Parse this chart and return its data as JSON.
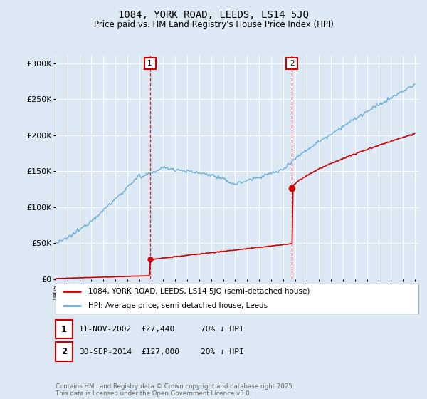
{
  "title": "1084, YORK ROAD, LEEDS, LS14 5JQ",
  "subtitle": "Price paid vs. HM Land Registry's House Price Index (HPI)",
  "background_color": "#dce9f5",
  "plot_bg_color": "#dce9f5",
  "hpi_color": "#6baed6",
  "price_color": "#cc0000",
  "vline_color": "#cc0000",
  "ylim": [
    0,
    310000
  ],
  "yticks": [
    0,
    50000,
    100000,
    150000,
    200000,
    250000,
    300000
  ],
  "ytick_labels": [
    "£0",
    "£50K",
    "£100K",
    "£150K",
    "£200K",
    "£250K",
    "£300K"
  ],
  "legend_label_price": "1084, YORK ROAD, LEEDS, LS14 5JQ (semi-detached house)",
  "legend_label_hpi": "HPI: Average price, semi-detached house, Leeds",
  "annotation1_date": "11-NOV-2002",
  "annotation1_price": "£27,440",
  "annotation1_hpi": "70% ↓ HPI",
  "annotation2_date": "30-SEP-2014",
  "annotation2_price": "£127,000",
  "annotation2_hpi": "20% ↓ HPI",
  "footer": "Contains HM Land Registry data © Crown copyright and database right 2025.\nThis data is licensed under the Open Government Licence v3.0.",
  "sale1_year_float": 2002.875,
  "sale1_price": 27440,
  "sale2_year_float": 2014.75,
  "sale2_price": 127000
}
